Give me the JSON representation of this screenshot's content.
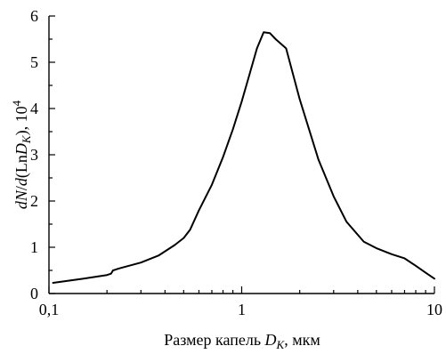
{
  "chart_data": {
    "type": "line",
    "xscale": "log",
    "xlim": [
      0.1,
      10
    ],
    "ylim": [
      0,
      6
    ],
    "grid": false,
    "xlabel": {
      "main": "Размер капель ",
      "var": "D",
      "sub": "K",
      "unit": ", мкм"
    },
    "ylabel": {
      "p1": "dN",
      "p2": "/",
      "p3": "d",
      "p4": "(Ln",
      "p5": "D",
      "sub": "K",
      "p6": "), 10",
      "sup": "4"
    },
    "xticks": [
      {
        "value": 0.1,
        "label": "0,1"
      },
      {
        "value": 1,
        "label": "1"
      },
      {
        "value": 10,
        "label": "10"
      }
    ],
    "yticks": [
      {
        "value": 0,
        "label": "0"
      },
      {
        "value": 1,
        "label": "1"
      },
      {
        "value": 2,
        "label": "2"
      },
      {
        "value": 3,
        "label": "3"
      },
      {
        "value": 4,
        "label": "4"
      },
      {
        "value": 5,
        "label": "5"
      },
      {
        "value": 6,
        "label": "6"
      }
    ],
    "series": [
      {
        "x": [
          0.105,
          0.15,
          0.2,
          0.21,
          0.215,
          0.23,
          0.3,
          0.37,
          0.45,
          0.5,
          0.54,
          0.6,
          0.7,
          0.8,
          0.9,
          1.0,
          1.1,
          1.2,
          1.3,
          1.4,
          1.5,
          1.7,
          2.0,
          2.5,
          3.0,
          3.5,
          4.3,
          5.0,
          6.0,
          7.0,
          8.0,
          9.0,
          10.0
        ],
        "y": [
          0.23,
          0.32,
          0.4,
          0.43,
          0.5,
          0.54,
          0.67,
          0.82,
          1.05,
          1.2,
          1.38,
          1.8,
          2.35,
          2.95,
          3.55,
          4.15,
          4.75,
          5.3,
          5.65,
          5.63,
          5.5,
          5.3,
          4.2,
          2.9,
          2.1,
          1.55,
          1.12,
          0.98,
          0.85,
          0.76,
          0.6,
          0.45,
          0.32
        ]
      }
    ]
  }
}
